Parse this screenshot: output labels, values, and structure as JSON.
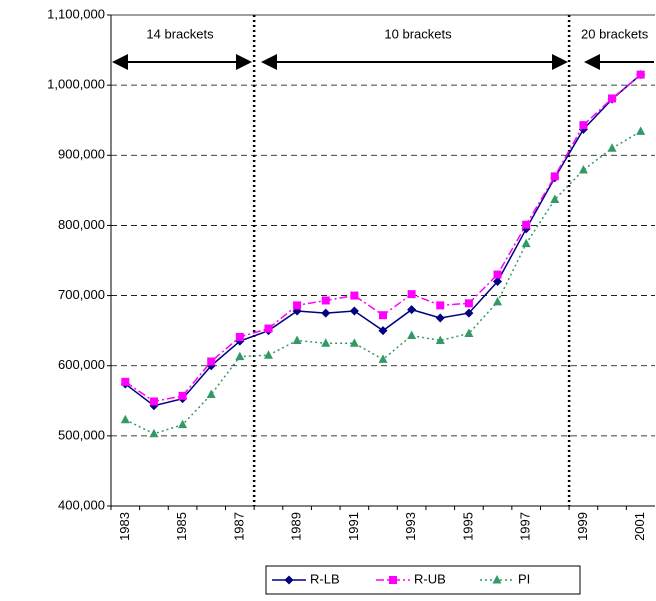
{
  "chart_data": {
    "type": "line",
    "categories": [
      "1983",
      null,
      "1985",
      null,
      "1987",
      null,
      "1989",
      null,
      "1991",
      null,
      "1993",
      null,
      "1995",
      null,
      "1997",
      null,
      "1999",
      null,
      "2001"
    ],
    "series": [
      {
        "name": "R-LB",
        "color": "#000080",
        "marker": "diamond",
        "line": "solid",
        "values": [
          574000,
          543000,
          553000,
          600000,
          635000,
          650000,
          678000,
          675000,
          678000,
          650000,
          680000,
          668000,
          675000,
          720000,
          795000,
          868000,
          937000,
          980000,
          1015000
        ]
      },
      {
        "name": "R-UB",
        "color": "#ff00ff",
        "marker": "square",
        "line": "dashdot",
        "values": [
          577000,
          549000,
          557000,
          606000,
          641000,
          653000,
          686000,
          693000,
          700000,
          672000,
          702000,
          686000,
          689000,
          730000,
          801000,
          870000,
          943000,
          981000,
          1015000
        ]
      },
      {
        "name": "PI",
        "color": "#339966",
        "marker": "triangle",
        "line": "dotted",
        "values": [
          523000,
          503000,
          516000,
          559000,
          613000,
          615000,
          636000,
          632000,
          632000,
          609000,
          643000,
          636000,
          646000,
          691000,
          774000,
          837000,
          879000,
          910000,
          934000
        ]
      }
    ],
    "ylim": [
      400000,
      1100000
    ],
    "yticks": [
      {
        "value": 400000,
        "label": "400,000"
      },
      {
        "value": 500000,
        "label": "500,000"
      },
      {
        "value": 600000,
        "label": "600,000"
      },
      {
        "value": 700000,
        "label": "700,000"
      },
      {
        "value": 800000,
        "label": "800,000"
      },
      {
        "value": 900000,
        "label": "900,000"
      },
      {
        "value": 1000000,
        "label": "1,000,000"
      },
      {
        "value": 1100000,
        "label": "1,100,000"
      }
    ],
    "grid": true,
    "annotations": [
      "14 brackets",
      "10 brackets",
      "20 brackets"
    ]
  }
}
